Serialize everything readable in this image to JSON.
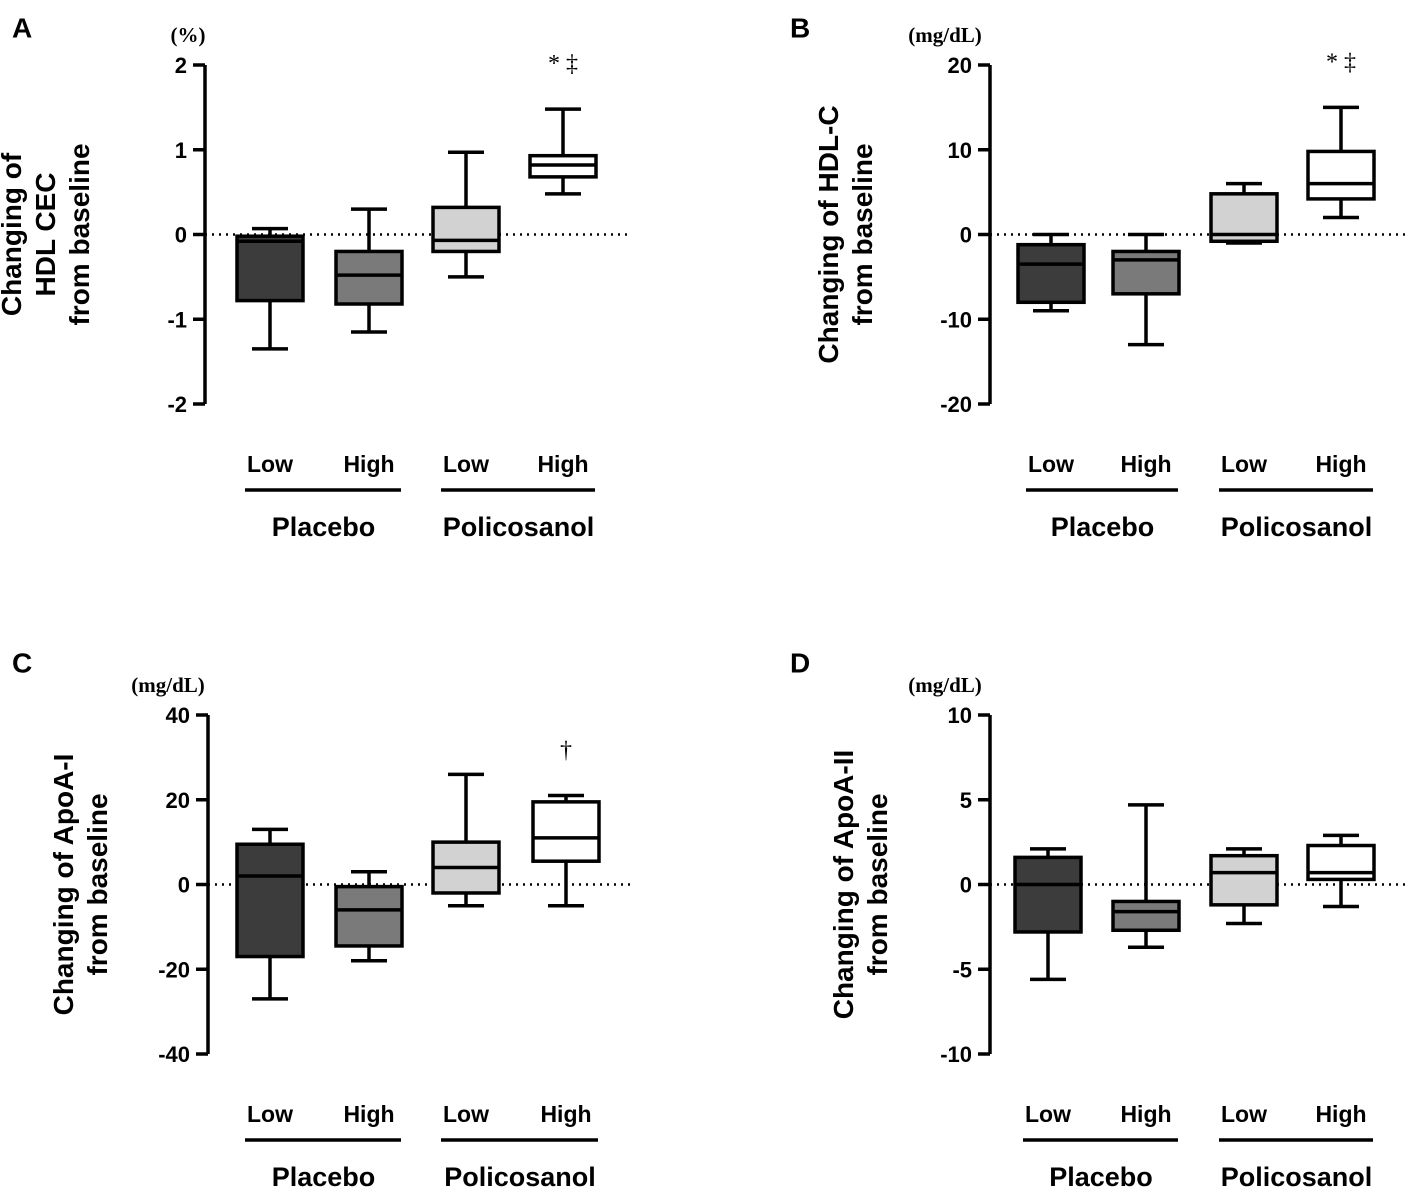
{
  "chart_data": [
    {
      "panel": "A",
      "type": "box",
      "unit": "(%)",
      "ylabel": [
        "Changing of",
        "HDL CEC",
        "from baseline"
      ],
      "ylim": [
        -2,
        2
      ],
      "yticks": [
        2,
        1,
        0,
        -1,
        -2
      ],
      "ytick_labels": [
        "2",
        "1",
        "0",
        "-1",
        "-2"
      ],
      "categories": [
        "Low",
        "High",
        "Low",
        "High"
      ],
      "groups": [
        {
          "name": "Placebo",
          "members": [
            0,
            1
          ]
        },
        {
          "name": "Policosanol",
          "members": [
            2,
            3
          ]
        }
      ],
      "series": [
        {
          "name": "Placebo Low",
          "color": "#3c3c3c",
          "min": -1.35,
          "q1": -0.78,
          "median": -0.08,
          "q3": -0.02,
          "max": 0.07,
          "sig": ""
        },
        {
          "name": "Placebo High",
          "color": "#7a7a7a",
          "min": -1.15,
          "q1": -0.82,
          "median": -0.48,
          "q3": -0.2,
          "max": 0.3,
          "sig": ""
        },
        {
          "name": "Policosanol Low",
          "color": "#d2d2d2",
          "min": -0.5,
          "q1": -0.2,
          "median": -0.07,
          "q3": 0.32,
          "max": 0.97,
          "sig": ""
        },
        {
          "name": "Policosanol High",
          "color": "#ffffff",
          "min": 0.48,
          "q1": 0.68,
          "median": 0.82,
          "q3": 0.93,
          "max": 1.48,
          "sig": "*  ‡"
        }
      ]
    },
    {
      "panel": "B",
      "type": "box",
      "unit": "(mg/dL)",
      "ylabel": [
        "Changing of HDL-C",
        "from baseline"
      ],
      "ylim": [
        -20,
        20
      ],
      "yticks": [
        20,
        10,
        0,
        -10,
        -20
      ],
      "ytick_labels": [
        "20",
        "10",
        "0",
        "-10",
        "-20"
      ],
      "categories": [
        "Low",
        "High",
        "Low",
        "High"
      ],
      "groups": [
        {
          "name": "Placebo",
          "members": [
            0,
            1
          ]
        },
        {
          "name": "Policosanol",
          "members": [
            2,
            3
          ]
        }
      ],
      "series": [
        {
          "name": "Placebo Low",
          "color": "#3c3c3c",
          "min": -9,
          "q1": -8,
          "median": -3.5,
          "q3": -1.2,
          "max": 0,
          "sig": ""
        },
        {
          "name": "Placebo High",
          "color": "#7a7a7a",
          "min": -13,
          "q1": -7,
          "median": -3,
          "q3": -2,
          "max": 0,
          "sig": ""
        },
        {
          "name": "Policosanol Low",
          "color": "#d2d2d2",
          "min": -1,
          "q1": -0.8,
          "median": 0,
          "q3": 4.8,
          "max": 6,
          "sig": ""
        },
        {
          "name": "Policosanol High",
          "color": "#ffffff",
          "min": 2,
          "q1": 4.2,
          "median": 6,
          "q3": 9.8,
          "max": 15,
          "sig": "*  ‡"
        }
      ]
    },
    {
      "panel": "C",
      "type": "box",
      "unit": "(mg/dL)",
      "ylabel": [
        "Changing of ApoA-I",
        "from baseline"
      ],
      "ylim": [
        -40,
        40
      ],
      "yticks": [
        40,
        20,
        0,
        -20,
        -40
      ],
      "ytick_labels": [
        "40",
        "20",
        "0",
        "-20",
        "-40"
      ],
      "categories": [
        "Low",
        "High",
        "Low",
        "High"
      ],
      "groups": [
        {
          "name": "Placebo",
          "members": [
            0,
            1
          ]
        },
        {
          "name": "Policosanol",
          "members": [
            2,
            3
          ]
        }
      ],
      "series": [
        {
          "name": "Placebo Low",
          "color": "#3c3c3c",
          "min": -27,
          "q1": -17,
          "median": 2,
          "q3": 9.5,
          "max": 13,
          "sig": ""
        },
        {
          "name": "Placebo High",
          "color": "#7a7a7a",
          "min": -18,
          "q1": -14.5,
          "median": -6,
          "q3": -0.5,
          "max": 3,
          "sig": ""
        },
        {
          "name": "Policosanol Low",
          "color": "#d2d2d2",
          "min": -5,
          "q1": -2,
          "median": 4,
          "q3": 10,
          "max": 26,
          "sig": ""
        },
        {
          "name": "Policosanol High",
          "color": "#ffffff",
          "min": -5,
          "q1": 5.5,
          "median": 11,
          "q3": 19.5,
          "max": 21,
          "sig": "†"
        }
      ]
    },
    {
      "panel": "D",
      "type": "box",
      "unit": "(mg/dL)",
      "ylabel": [
        "Changing of ApoA-II",
        "from baseline"
      ],
      "ylim": [
        -10,
        10
      ],
      "yticks": [
        10,
        5,
        0,
        -5,
        -10
      ],
      "ytick_labels": [
        "10",
        "5",
        "0",
        "-5",
        "-10"
      ],
      "categories": [
        "Low",
        "High",
        "Low",
        "High"
      ],
      "groups": [
        {
          "name": "Placebo",
          "members": [
            0,
            1
          ]
        },
        {
          "name": "Policosanol",
          "members": [
            2,
            3
          ]
        }
      ],
      "series": [
        {
          "name": "Placebo Low",
          "color": "#3c3c3c",
          "min": -5.6,
          "q1": -2.8,
          "median": 0,
          "q3": 1.6,
          "max": 2.1,
          "sig": ""
        },
        {
          "name": "Placebo High",
          "color": "#7a7a7a",
          "min": -3.7,
          "q1": -2.7,
          "median": -1.6,
          "q3": -1,
          "max": 4.7,
          "sig": ""
        },
        {
          "name": "Policosanol Low",
          "color": "#d2d2d2",
          "min": -2.3,
          "q1": -1.2,
          "median": 0.7,
          "q3": 1.7,
          "max": 2.1,
          "sig": ""
        },
        {
          "name": "Policosanol High",
          "color": "#ffffff",
          "min": -1.3,
          "q1": 0.3,
          "median": 0.7,
          "q3": 2.3,
          "max": 2.9,
          "sig": ""
        }
      ]
    }
  ]
}
